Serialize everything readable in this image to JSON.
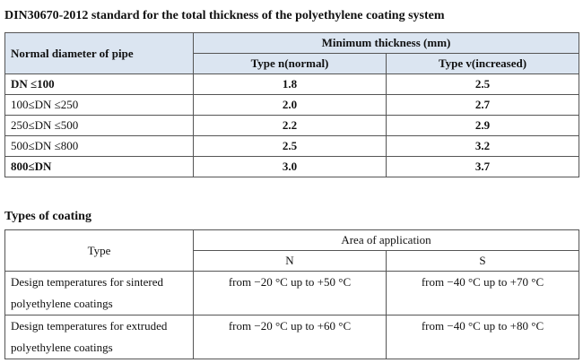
{
  "title": "DIN30670-2012 standard for the total thickness of the polyethylene coating system",
  "thickness_table": {
    "header": {
      "diameter": "Normal diameter of pipe",
      "group": "Minimum thickness (mm)",
      "type_n": "Type n(normal)",
      "type_v": "Type v(increased)"
    },
    "rows": [
      [
        "DN ≤100",
        "1.8",
        "2.5"
      ],
      [
        "100≤DN ≤250",
        "2.0",
        "2.7"
      ],
      [
        "250≤DN ≤500",
        "2.2",
        "2.9"
      ],
      [
        "500≤DN ≤800",
        "2.5",
        "3.2"
      ],
      [
        "800≤DN",
        "3.0",
        "3.7"
      ]
    ]
  },
  "coating_title": "Types of coating",
  "coating_table": {
    "header": {
      "type": "Type",
      "group": "Area of application",
      "n": "N",
      "s": "S"
    },
    "rows": [
      [
        "Design temperatures for sintered polyethylene coatings",
        "from −20 °C up to +50 °C",
        "from −40 °C up to +70 °C"
      ],
      [
        "Design temperatures for extruded polyethylene coatings",
        "from −20 °C up to +60 °C",
        "from −40 °C up to +80 °C"
      ]
    ]
  }
}
